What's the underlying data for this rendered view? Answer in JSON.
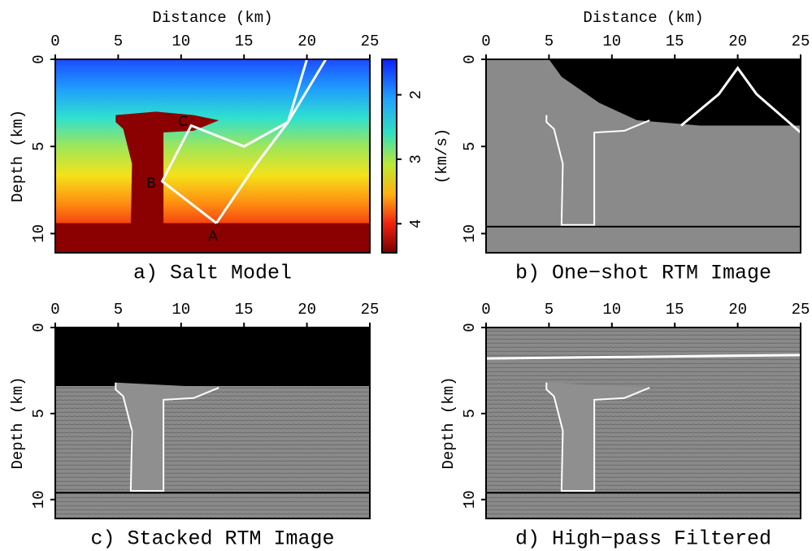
{
  "chart_data": [
    {
      "type": "image",
      "title": "Distance (km)",
      "caption": "a) Salt Model",
      "ylabel": "Depth (km)",
      "xlim": [
        0,
        25
      ],
      "xticks": [
        0,
        5,
        10,
        15,
        20,
        25
      ],
      "ylim": [
        0,
        11.1
      ],
      "yticks": [
        0,
        5,
        10
      ],
      "colorbar": {
        "label": "(km/s)",
        "lim": [
          1.45,
          4.45
        ],
        "ticks": [
          2,
          3,
          4
        ]
      },
      "annotations": [
        "A",
        "B",
        "C"
      ]
    },
    {
      "type": "image",
      "title": "Distance (km)",
      "caption": "b) One−shot RTM Image",
      "xlim": [
        0,
        25
      ],
      "xticks": [
        0,
        5,
        10,
        15,
        20,
        25
      ],
      "ylim": [
        0,
        11.1
      ],
      "yticks": [
        0,
        5,
        10
      ]
    },
    {
      "type": "image",
      "caption": "c) Stacked RTM Image",
      "ylabel": "Depth (km)",
      "xlim": [
        0,
        25
      ],
      "xticks": [
        0,
        5,
        10,
        15,
        20,
        25
      ],
      "ylim": [
        0,
        11.1
      ],
      "yticks": [
        0,
        5,
        10
      ]
    },
    {
      "type": "image",
      "caption": "d) High−pass Filtered",
      "ylabel": "Depth (km)",
      "xlim": [
        0,
        25
      ],
      "xticks": [
        0,
        5,
        10,
        15,
        20,
        25
      ],
      "ylim": [
        0,
        11.1
      ],
      "yticks": [
        0,
        5,
        10
      ]
    }
  ]
}
